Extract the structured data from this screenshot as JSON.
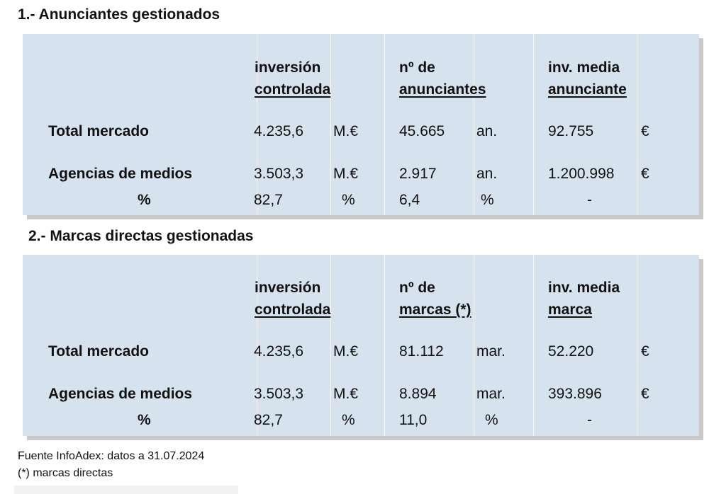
{
  "section1": {
    "title": "1.- Anunciantes gestionados",
    "headers": [
      {
        "line1": "inversión",
        "line2": "controlada"
      },
      {
        "line1": "nº de",
        "line2": "anunciantes"
      },
      {
        "line1": "inv. media",
        "line2": "anunciante"
      }
    ],
    "rows": [
      {
        "label": "Total mercado",
        "c1": "4.235,6",
        "u1": "M.€",
        "c2": "45.665",
        "u2": "an.",
        "c3": "92.755",
        "u3": "€"
      },
      {
        "label": "Agencias de medios",
        "c1": "3.503,3",
        "u1": "M.€",
        "c2": "2.917",
        "u2": "an.",
        "c3": "1.200.998",
        "u3": "€"
      },
      {
        "label": "%",
        "c1": "82,7",
        "u1": "%",
        "c2": "6,4",
        "u2": "%",
        "c3": "-",
        "u3": ""
      }
    ]
  },
  "section2": {
    "title": "2.- Marcas directas gestionadas",
    "headers": [
      {
        "line1": "inversión",
        "line2": "controlada"
      },
      {
        "line1": "nº de",
        "line2": "marcas (*)"
      },
      {
        "line1": "inv. media",
        "line2": "marca"
      }
    ],
    "rows": [
      {
        "label": "Total mercado",
        "c1": "4.235,6",
        "u1": "M.€",
        "c2": "81.112",
        "u2": "mar.",
        "c3": "52.220",
        "u3": "€"
      },
      {
        "label": "Agencias de medios",
        "c1": "3.503,3",
        "u1": "M.€",
        "c2": "8.894",
        "u2": "mar.",
        "c3": "393.896",
        "u3": "€"
      },
      {
        "label": "%",
        "c1": "82,7",
        "u1": "%",
        "c2": "11,0",
        "u2": "%",
        "c3": "-",
        "u3": ""
      }
    ]
  },
  "footer": {
    "source": "Fuente InfoAdex: datos a 31.07.2024",
    "note": "(*) marcas directas"
  },
  "colors": {
    "panel": "#d6e3ee",
    "shadow": "#c9c9c9"
  }
}
